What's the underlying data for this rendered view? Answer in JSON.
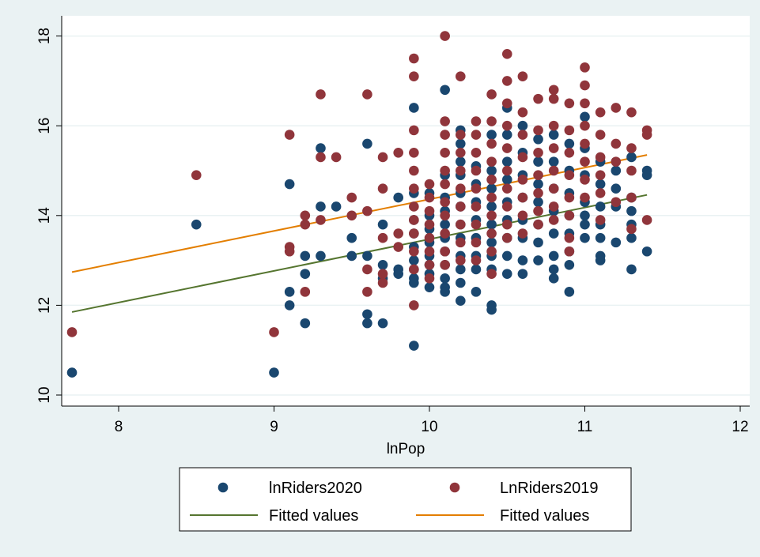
{
  "chart_data": {
    "type": "scatter",
    "xlabel": "lnPop",
    "ylabel": "",
    "xlim": [
      7.7,
      12
    ],
    "ylim": [
      10,
      18.3
    ],
    "xticks": [
      "8",
      "9",
      "10",
      "11",
      "12"
    ],
    "yticks": [
      "10",
      "12",
      "14",
      "16",
      "18"
    ],
    "grid": "horizontal",
    "legend_position": "bottom",
    "legend": [
      {
        "label": "lnRiders2020",
        "kind": "marker",
        "series": "lnRiders2020"
      },
      {
        "label": "LnRiders2019",
        "kind": "marker",
        "series": "LnRiders2019"
      },
      {
        "label": "Fitted values",
        "kind": "line",
        "series": "fit2020"
      },
      {
        "label": "Fitted values",
        "kind": "line",
        "series": "fit2019"
      }
    ],
    "series": [
      {
        "name": "lnRiders2020",
        "color": "#1a476f",
        "points": [
          [
            7.7,
            10.5
          ],
          [
            8.5,
            13.8
          ],
          [
            9.0,
            10.5
          ],
          [
            9.1,
            14.7
          ],
          [
            9.1,
            12.3
          ],
          [
            9.1,
            12.0
          ],
          [
            9.2,
            13.1
          ],
          [
            9.2,
            12.7
          ],
          [
            9.2,
            11.6
          ],
          [
            9.3,
            15.5
          ],
          [
            9.3,
            14.2
          ],
          [
            9.3,
            13.1
          ],
          [
            9.4,
            14.2
          ],
          [
            9.5,
            13.5
          ],
          [
            9.5,
            13.1
          ],
          [
            9.6,
            15.6
          ],
          [
            9.6,
            13.1
          ],
          [
            9.6,
            11.8
          ],
          [
            9.6,
            11.6
          ],
          [
            9.7,
            13.8
          ],
          [
            9.7,
            12.9
          ],
          [
            9.7,
            12.6
          ],
          [
            9.7,
            11.6
          ],
          [
            9.8,
            14.4
          ],
          [
            9.8,
            12.8
          ],
          [
            9.8,
            12.7
          ],
          [
            9.9,
            16.4
          ],
          [
            9.9,
            14.5
          ],
          [
            9.9,
            13.9
          ],
          [
            9.9,
            13.6
          ],
          [
            9.9,
            13.3
          ],
          [
            9.9,
            13.0
          ],
          [
            9.9,
            12.8
          ],
          [
            9.9,
            12.6
          ],
          [
            9.9,
            12.5
          ],
          [
            9.9,
            11.1
          ],
          [
            10.0,
            14.5
          ],
          [
            10.0,
            14.0
          ],
          [
            10.0,
            13.7
          ],
          [
            10.0,
            13.4
          ],
          [
            10.0,
            13.1
          ],
          [
            10.0,
            12.9
          ],
          [
            10.0,
            12.7
          ],
          [
            10.0,
            12.4
          ],
          [
            10.1,
            16.8
          ],
          [
            10.1,
            14.9
          ],
          [
            10.1,
            14.4
          ],
          [
            10.1,
            14.1
          ],
          [
            10.1,
            13.8
          ],
          [
            10.1,
            13.5
          ],
          [
            10.1,
            13.2
          ],
          [
            10.1,
            12.9
          ],
          [
            10.1,
            12.6
          ],
          [
            10.1,
            12.4
          ],
          [
            10.1,
            12.3
          ],
          [
            10.2,
            15.9
          ],
          [
            10.2,
            15.6
          ],
          [
            10.2,
            15.2
          ],
          [
            10.2,
            14.9
          ],
          [
            10.2,
            14.5
          ],
          [
            10.2,
            14.2
          ],
          [
            10.2,
            13.8
          ],
          [
            10.2,
            13.5
          ],
          [
            10.2,
            13.1
          ],
          [
            10.2,
            12.8
          ],
          [
            10.2,
            12.5
          ],
          [
            10.2,
            12.1
          ],
          [
            10.3,
            15.1
          ],
          [
            10.3,
            14.7
          ],
          [
            10.3,
            14.3
          ],
          [
            10.3,
            13.9
          ],
          [
            10.3,
            13.5
          ],
          [
            10.3,
            13.1
          ],
          [
            10.3,
            12.8
          ],
          [
            10.3,
            12.3
          ],
          [
            10.4,
            15.8
          ],
          [
            10.4,
            15.0
          ],
          [
            10.4,
            14.6
          ],
          [
            10.4,
            14.2
          ],
          [
            10.4,
            13.8
          ],
          [
            10.4,
            13.4
          ],
          [
            10.4,
            13.1
          ],
          [
            10.4,
            12.8
          ],
          [
            10.4,
            12.0
          ],
          [
            10.4,
            11.9
          ],
          [
            10.5,
            16.4
          ],
          [
            10.5,
            15.8
          ],
          [
            10.5,
            15.2
          ],
          [
            10.5,
            14.8
          ],
          [
            10.5,
            14.3
          ],
          [
            10.5,
            13.9
          ],
          [
            10.5,
            13.5
          ],
          [
            10.5,
            13.1
          ],
          [
            10.5,
            12.7
          ],
          [
            10.6,
            16.0
          ],
          [
            10.6,
            15.4
          ],
          [
            10.6,
            14.9
          ],
          [
            10.6,
            14.4
          ],
          [
            10.6,
            13.9
          ],
          [
            10.6,
            13.5
          ],
          [
            10.6,
            13.0
          ],
          [
            10.6,
            12.7
          ],
          [
            10.7,
            15.7
          ],
          [
            10.7,
            15.2
          ],
          [
            10.7,
            14.7
          ],
          [
            10.7,
            14.3
          ],
          [
            10.7,
            13.8
          ],
          [
            10.7,
            13.4
          ],
          [
            10.7,
            13.0
          ],
          [
            10.8,
            15.8
          ],
          [
            10.8,
            15.2
          ],
          [
            10.8,
            14.6
          ],
          [
            10.8,
            14.1
          ],
          [
            10.8,
            13.6
          ],
          [
            10.8,
            13.1
          ],
          [
            10.8,
            12.8
          ],
          [
            10.8,
            12.6
          ],
          [
            10.9,
            15.6
          ],
          [
            10.9,
            15.0
          ],
          [
            10.9,
            14.5
          ],
          [
            10.9,
            14.0
          ],
          [
            10.9,
            13.6
          ],
          [
            10.9,
            13.2
          ],
          [
            10.9,
            12.9
          ],
          [
            10.9,
            12.3
          ],
          [
            11.0,
            16.2
          ],
          [
            11.0,
            15.5
          ],
          [
            11.0,
            14.9
          ],
          [
            11.0,
            14.3
          ],
          [
            11.0,
            14.0
          ],
          [
            11.0,
            13.8
          ],
          [
            11.0,
            13.5
          ],
          [
            11.1,
            15.2
          ],
          [
            11.1,
            14.7
          ],
          [
            11.1,
            14.2
          ],
          [
            11.1,
            13.8
          ],
          [
            11.1,
            13.5
          ],
          [
            11.1,
            13.1
          ],
          [
            11.1,
            13.0
          ],
          [
            11.2,
            15.0
          ],
          [
            11.2,
            14.6
          ],
          [
            11.2,
            14.2
          ],
          [
            11.2,
            13.4
          ],
          [
            11.3,
            15.3
          ],
          [
            11.3,
            14.4
          ],
          [
            11.3,
            14.1
          ],
          [
            11.3,
            13.8
          ],
          [
            11.3,
            13.5
          ],
          [
            11.3,
            12.8
          ],
          [
            11.4,
            15.0
          ],
          [
            11.4,
            14.9
          ],
          [
            11.4,
            13.2
          ]
        ]
      },
      {
        "name": "LnRiders2019",
        "color": "#90353b",
        "points": [
          [
            7.7,
            11.4
          ],
          [
            8.5,
            14.9
          ],
          [
            9.0,
            11.4
          ],
          [
            9.1,
            15.8
          ],
          [
            9.1,
            13.3
          ],
          [
            9.1,
            13.2
          ],
          [
            9.2,
            14.0
          ],
          [
            9.2,
            13.8
          ],
          [
            9.2,
            12.3
          ],
          [
            9.3,
            16.7
          ],
          [
            9.3,
            15.3
          ],
          [
            9.3,
            13.9
          ],
          [
            9.4,
            15.3
          ],
          [
            9.5,
            14.4
          ],
          [
            9.5,
            14.0
          ],
          [
            9.6,
            16.7
          ],
          [
            9.6,
            14.1
          ],
          [
            9.6,
            12.8
          ],
          [
            9.6,
            12.3
          ],
          [
            9.7,
            15.3
          ],
          [
            9.7,
            14.6
          ],
          [
            9.7,
            13.5
          ],
          [
            9.7,
            12.7
          ],
          [
            9.7,
            12.5
          ],
          [
            9.8,
            15.4
          ],
          [
            9.8,
            13.6
          ],
          [
            9.8,
            13.3
          ],
          [
            9.9,
            17.5
          ],
          [
            9.9,
            17.1
          ],
          [
            9.9,
            15.9
          ],
          [
            9.9,
            15.4
          ],
          [
            9.9,
            15.0
          ],
          [
            9.9,
            14.6
          ],
          [
            9.9,
            14.2
          ],
          [
            9.9,
            13.9
          ],
          [
            9.9,
            13.6
          ],
          [
            9.9,
            13.2
          ],
          [
            9.9,
            12.8
          ],
          [
            9.9,
            12.0
          ],
          [
            10.0,
            14.7
          ],
          [
            10.0,
            14.4
          ],
          [
            10.0,
            14.1
          ],
          [
            10.0,
            13.8
          ],
          [
            10.0,
            13.5
          ],
          [
            10.0,
            13.2
          ],
          [
            10.0,
            12.9
          ],
          [
            10.0,
            12.6
          ],
          [
            10.1,
            18.0
          ],
          [
            10.1,
            16.1
          ],
          [
            10.1,
            15.8
          ],
          [
            10.1,
            15.4
          ],
          [
            10.1,
            15.0
          ],
          [
            10.1,
            14.7
          ],
          [
            10.1,
            14.3
          ],
          [
            10.1,
            14.0
          ],
          [
            10.1,
            13.6
          ],
          [
            10.1,
            13.2
          ],
          [
            10.1,
            12.9
          ],
          [
            10.2,
            17.1
          ],
          [
            10.2,
            15.8
          ],
          [
            10.2,
            15.4
          ],
          [
            10.2,
            15.0
          ],
          [
            10.2,
            14.6
          ],
          [
            10.2,
            14.2
          ],
          [
            10.2,
            13.8
          ],
          [
            10.2,
            13.4
          ],
          [
            10.2,
            13.0
          ],
          [
            10.3,
            16.1
          ],
          [
            10.3,
            15.8
          ],
          [
            10.3,
            15.4
          ],
          [
            10.3,
            15.0
          ],
          [
            10.3,
            14.6
          ],
          [
            10.3,
            14.2
          ],
          [
            10.3,
            13.8
          ],
          [
            10.3,
            13.4
          ],
          [
            10.3,
            13.0
          ],
          [
            10.4,
            16.7
          ],
          [
            10.4,
            16.1
          ],
          [
            10.4,
            15.6
          ],
          [
            10.4,
            15.2
          ],
          [
            10.4,
            14.8
          ],
          [
            10.4,
            14.4
          ],
          [
            10.4,
            14.0
          ],
          [
            10.4,
            13.6
          ],
          [
            10.4,
            13.2
          ],
          [
            10.4,
            12.7
          ],
          [
            10.5,
            17.6
          ],
          [
            10.5,
            17.0
          ],
          [
            10.5,
            16.5
          ],
          [
            10.5,
            16.0
          ],
          [
            10.5,
            15.5
          ],
          [
            10.5,
            15.0
          ],
          [
            10.5,
            14.6
          ],
          [
            10.5,
            14.2
          ],
          [
            10.5,
            13.8
          ],
          [
            10.5,
            13.5
          ],
          [
            10.6,
            17.1
          ],
          [
            10.6,
            16.3
          ],
          [
            10.6,
            15.8
          ],
          [
            10.6,
            15.3
          ],
          [
            10.6,
            14.8
          ],
          [
            10.6,
            14.4
          ],
          [
            10.6,
            14.0
          ],
          [
            10.6,
            13.6
          ],
          [
            10.7,
            16.6
          ],
          [
            10.7,
            15.9
          ],
          [
            10.7,
            15.4
          ],
          [
            10.7,
            14.9
          ],
          [
            10.7,
            14.5
          ],
          [
            10.7,
            14.1
          ],
          [
            10.7,
            13.8
          ],
          [
            10.8,
            16.8
          ],
          [
            10.8,
            16.6
          ],
          [
            10.8,
            16.0
          ],
          [
            10.8,
            15.5
          ],
          [
            10.8,
            15.0
          ],
          [
            10.8,
            14.6
          ],
          [
            10.8,
            14.2
          ],
          [
            10.8,
            13.9
          ],
          [
            10.9,
            16.5
          ],
          [
            10.9,
            15.9
          ],
          [
            10.9,
            15.4
          ],
          [
            10.9,
            14.9
          ],
          [
            10.9,
            14.4
          ],
          [
            10.9,
            14.0
          ],
          [
            10.9,
            13.5
          ],
          [
            10.9,
            13.2
          ],
          [
            11.0,
            17.3
          ],
          [
            11.0,
            16.9
          ],
          [
            11.0,
            16.5
          ],
          [
            11.0,
            16.0
          ],
          [
            11.0,
            15.6
          ],
          [
            11.0,
            15.2
          ],
          [
            11.0,
            14.8
          ],
          [
            11.0,
            14.4
          ],
          [
            11.1,
            16.3
          ],
          [
            11.1,
            15.8
          ],
          [
            11.1,
            15.3
          ],
          [
            11.1,
            14.9
          ],
          [
            11.1,
            14.5
          ],
          [
            11.1,
            13.9
          ],
          [
            11.2,
            16.4
          ],
          [
            11.2,
            15.6
          ],
          [
            11.2,
            15.2
          ],
          [
            11.2,
            14.3
          ],
          [
            11.3,
            16.3
          ],
          [
            11.3,
            15.5
          ],
          [
            11.3,
            15.0
          ],
          [
            11.3,
            14.4
          ],
          [
            11.3,
            13.7
          ],
          [
            11.4,
            15.9
          ],
          [
            11.4,
            15.8
          ],
          [
            11.4,
            13.9
          ]
        ]
      }
    ],
    "fits": [
      {
        "name": "fit2020",
        "color": "#55752f",
        "x": [
          7.7,
          11.4
        ],
        "y": [
          11.85,
          14.46
        ]
      },
      {
        "name": "fit2019",
        "color": "#e37e00",
        "x": [
          7.7,
          11.4
        ],
        "y": [
          12.74,
          15.35
        ]
      }
    ]
  }
}
